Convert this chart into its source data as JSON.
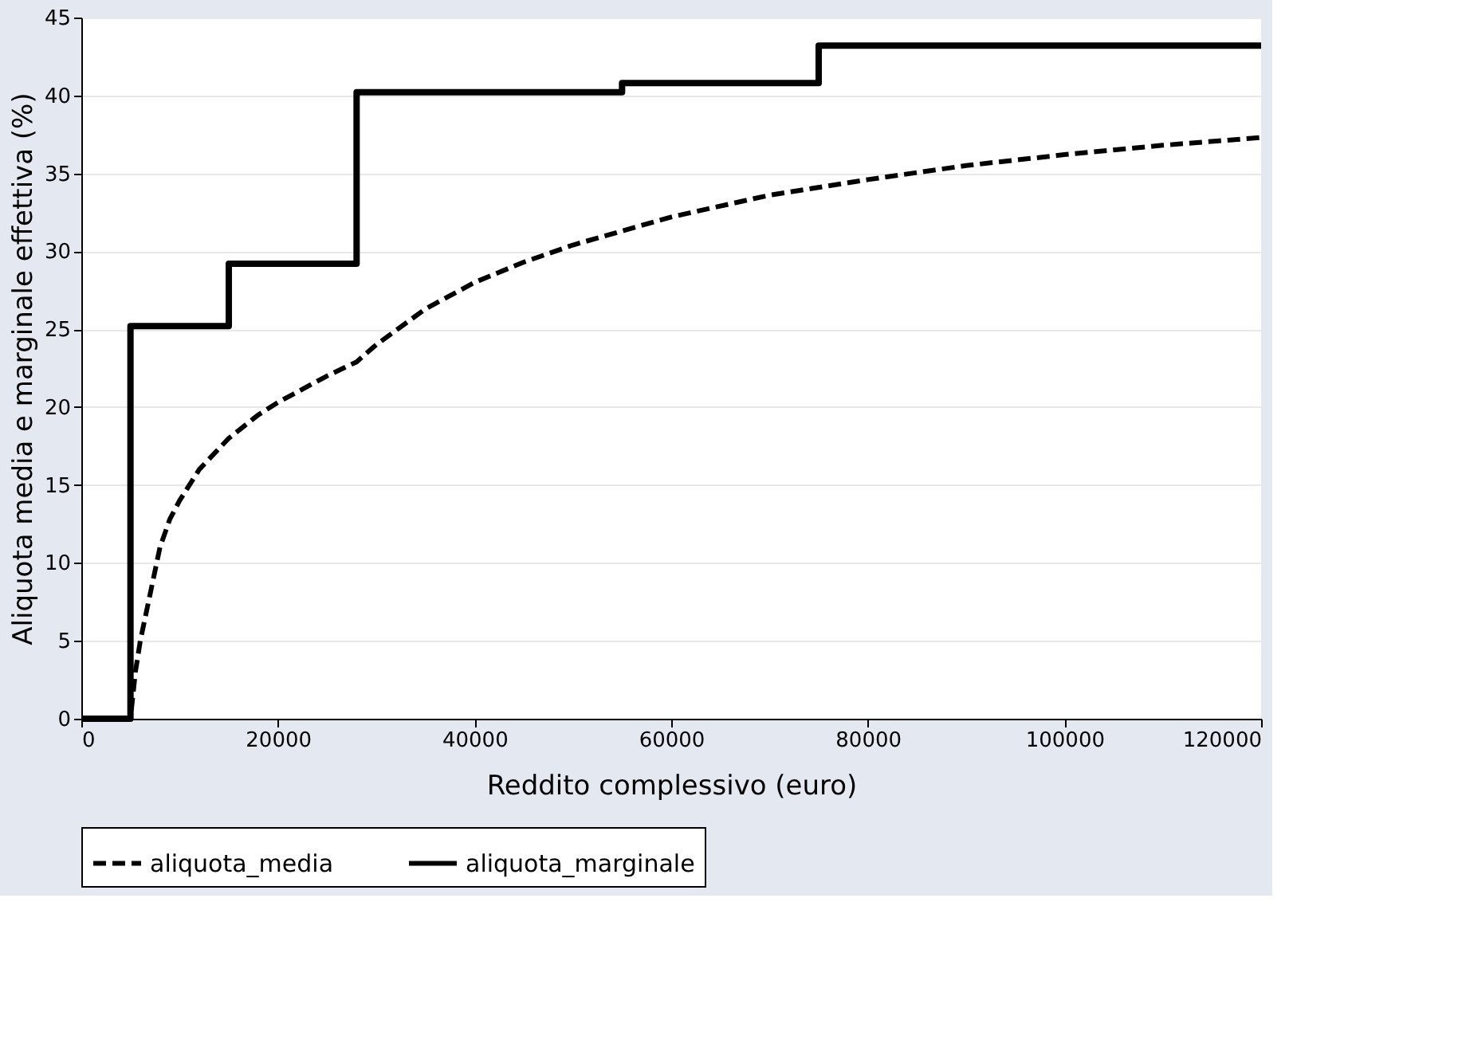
{
  "chart_data": {
    "type": "line",
    "xlabel": "Reddito complessivo (euro)",
    "ylabel": "Aliquota media e marginale effettiva (%)",
    "xlim": [
      0,
      120000
    ],
    "xticks": [
      0,
      20000,
      40000,
      60000,
      80000,
      100000,
      120000
    ],
    "ylim": [
      0,
      45
    ],
    "yticks": [
      0,
      5,
      10,
      15,
      20,
      25,
      30,
      35,
      40,
      45
    ],
    "grid": "y",
    "legend": "bottom",
    "marker": "none",
    "series": [
      {
        "name": "aliquota_media",
        "color": "#000000",
        "line_style": "dashed",
        "x": [
          0,
          5000,
          5500,
          6000,
          7000,
          8000,
          9000,
          10000,
          12000,
          15000,
          18000,
          20000,
          25000,
          28000,
          30000,
          35000,
          40000,
          45000,
          50000,
          55000,
          60000,
          70000,
          80000,
          90000,
          100000,
          110000,
          120000
        ],
        "values": [
          0,
          0,
          3,
          5,
          8,
          11,
          12.8,
          14,
          16,
          18,
          19.5,
          20.3,
          22,
          22.9,
          24,
          26.3,
          28,
          29.3,
          30.4,
          31.3,
          32.2,
          33.6,
          34.6,
          35.5,
          36.2,
          36.8,
          37.3
        ]
      },
      {
        "name": "aliquota_marginale",
        "color": "#000000",
        "line_style": "solid",
        "type": "step",
        "x": [
          0,
          5000,
          15000,
          28000,
          55000,
          75000,
          120000
        ],
        "values": [
          0,
          25.2,
          29.2,
          40.2,
          40.8,
          43.2,
          43.2
        ]
      }
    ]
  }
}
